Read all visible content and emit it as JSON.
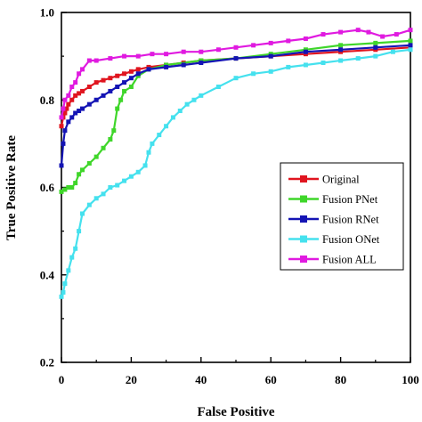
{
  "chart_data": {
    "type": "line",
    "xlabel": "False Positive",
    "ylabel": "True Positive Rate",
    "xlim": [
      0,
      100
    ],
    "ylim": [
      0.2,
      1.0
    ],
    "xticks": [
      "0",
      "20",
      "40",
      "60",
      "80",
      "100"
    ],
    "yticks": [
      "0.2",
      "0.4",
      "0.6",
      "0.8",
      "1.0"
    ],
    "grid": false,
    "legend_position": "right-middle",
    "series": [
      {
        "name": "Original",
        "color": "#e0151f",
        "x": [
          0,
          0.5,
          1,
          1.5,
          2,
          3,
          4,
          5,
          6,
          8,
          10,
          12,
          14,
          16,
          18,
          20,
          22,
          25,
          30,
          35,
          40,
          50,
          60,
          70,
          80,
          90,
          100
        ],
        "y": [
          0.74,
          0.76,
          0.77,
          0.78,
          0.79,
          0.8,
          0.81,
          0.815,
          0.82,
          0.83,
          0.84,
          0.845,
          0.85,
          0.855,
          0.86,
          0.865,
          0.87,
          0.875,
          0.88,
          0.885,
          0.89,
          0.895,
          0.9,
          0.905,
          0.91,
          0.915,
          0.92
        ]
      },
      {
        "name": "Fusion PNet",
        "color": "#3fd62a",
        "x": [
          0,
          1,
          2,
          3,
          4,
          5,
          6,
          8,
          10,
          12,
          14,
          15,
          16,
          17,
          18,
          20,
          22,
          25,
          30,
          40,
          50,
          60,
          70,
          80,
          90,
          100
        ],
        "y": [
          0.59,
          0.595,
          0.6,
          0.6,
          0.61,
          0.63,
          0.64,
          0.655,
          0.67,
          0.69,
          0.71,
          0.73,
          0.78,
          0.8,
          0.82,
          0.83,
          0.855,
          0.87,
          0.88,
          0.89,
          0.895,
          0.905,
          0.915,
          0.925,
          0.93,
          0.935
        ]
      },
      {
        "name": "Fusion RNet",
        "color": "#1414b4",
        "x": [
          0,
          0.5,
          1,
          2,
          3,
          4,
          5,
          6,
          8,
          10,
          12,
          14,
          16,
          18,
          20,
          22,
          25,
          30,
          35,
          40,
          50,
          60,
          70,
          80,
          90,
          100
        ],
        "y": [
          0.65,
          0.7,
          0.73,
          0.75,
          0.76,
          0.77,
          0.775,
          0.78,
          0.79,
          0.8,
          0.81,
          0.82,
          0.83,
          0.84,
          0.85,
          0.86,
          0.87,
          0.875,
          0.88,
          0.885,
          0.895,
          0.9,
          0.91,
          0.915,
          0.92,
          0.925
        ]
      },
      {
        "name": "Fusion ONet",
        "color": "#45e1ee",
        "x": [
          0,
          0.5,
          1,
          2,
          3,
          4,
          5,
          6,
          8,
          10,
          12,
          14,
          16,
          18,
          20,
          22,
          24,
          25,
          26,
          28,
          30,
          32,
          34,
          36,
          38,
          40,
          45,
          50,
          55,
          60,
          65,
          70,
          75,
          80,
          85,
          90,
          95,
          100
        ],
        "y": [
          0.35,
          0.36,
          0.38,
          0.41,
          0.44,
          0.46,
          0.5,
          0.54,
          0.56,
          0.575,
          0.585,
          0.6,
          0.605,
          0.615,
          0.625,
          0.635,
          0.65,
          0.68,
          0.7,
          0.72,
          0.74,
          0.76,
          0.775,
          0.79,
          0.8,
          0.81,
          0.83,
          0.85,
          0.86,
          0.865,
          0.875,
          0.88,
          0.885,
          0.89,
          0.895,
          0.9,
          0.91,
          0.915
        ]
      },
      {
        "name": "Fusion ALL",
        "color": "#e01ae0",
        "x": [
          0,
          0.5,
          1,
          2,
          3,
          4,
          5,
          6,
          8,
          10,
          14,
          18,
          22,
          26,
          30,
          35,
          40,
          45,
          50,
          55,
          60,
          65,
          70,
          75,
          80,
          85,
          88,
          92,
          96,
          100
        ],
        "y": [
          0.76,
          0.78,
          0.8,
          0.81,
          0.83,
          0.84,
          0.86,
          0.87,
          0.89,
          0.89,
          0.895,
          0.9,
          0.9,
          0.905,
          0.905,
          0.91,
          0.91,
          0.915,
          0.92,
          0.925,
          0.93,
          0.935,
          0.94,
          0.95,
          0.955,
          0.96,
          0.955,
          0.945,
          0.95,
          0.96
        ]
      }
    ]
  }
}
